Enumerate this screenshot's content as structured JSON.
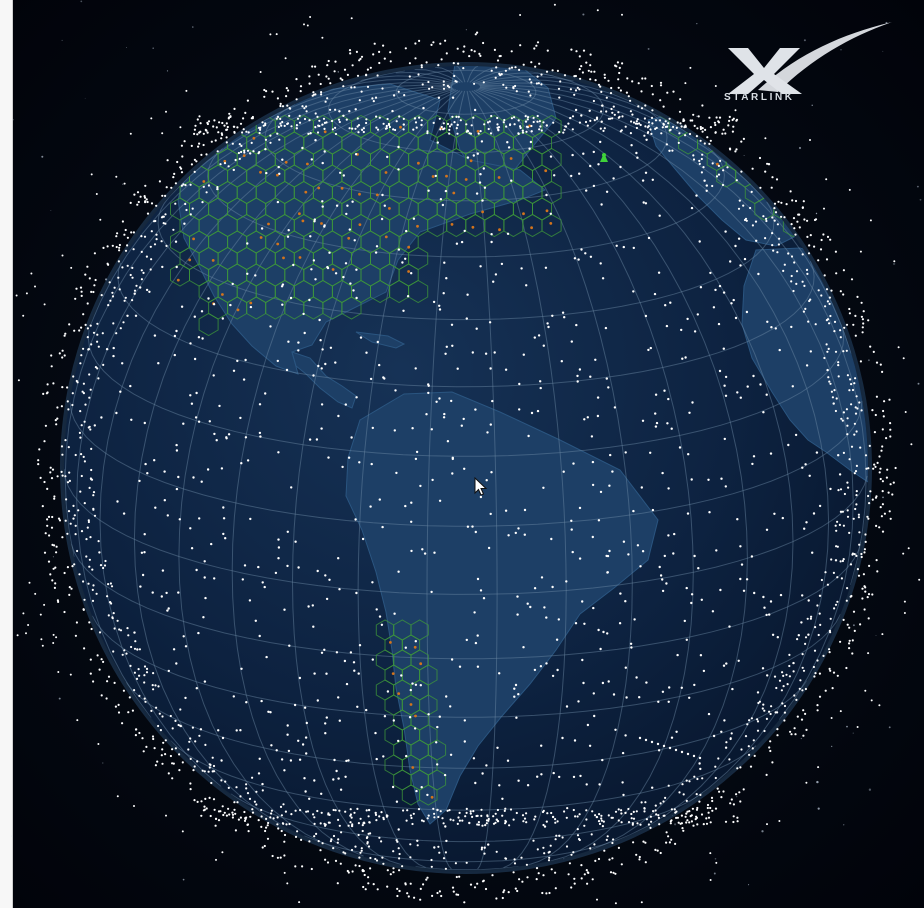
{
  "brand": {
    "logo_text": "STARLINK",
    "logo_icon": "starlink-x-swoosh-logo"
  },
  "view": {
    "subject": "starlink-satellite-constellation-globe",
    "icons": [
      "globe",
      "satellite-dot",
      "coverage-cell",
      "ground-station-marker",
      "mouse-pointer"
    ]
  },
  "colors": {
    "space": "#02050c",
    "ocean": "#0f2644",
    "land": "#1c3d63",
    "graticule": "#6c8aa3",
    "satellite": "#ffffff",
    "coverage_cell": "#3f9a3a",
    "coverage_accent": "#d4741c",
    "ground_station": "#3fd23a"
  }
}
